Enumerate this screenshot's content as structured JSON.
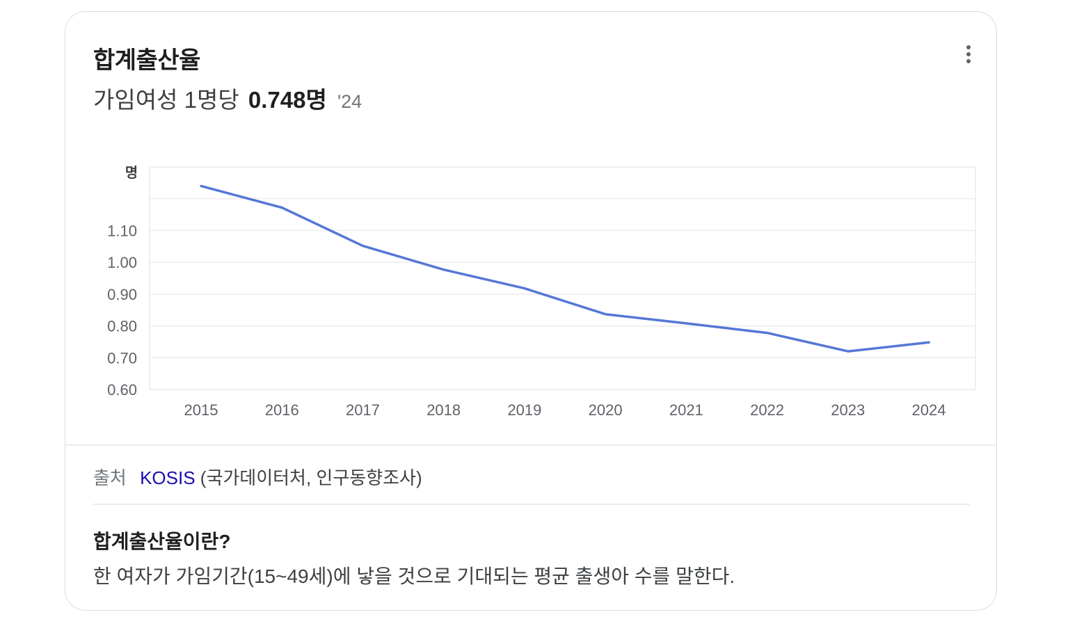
{
  "header": {
    "title": "합계출산율",
    "subtitle_prefix": "가임여성 1명당",
    "value": "0.748명",
    "year": "'24",
    "more_icon": "more-vertical-icon"
  },
  "chart_data": {
    "type": "line",
    "categories": [
      "2015",
      "2016",
      "2017",
      "2018",
      "2019",
      "2020",
      "2021",
      "2022",
      "2023",
      "2024"
    ],
    "series": [
      {
        "values": [
          1.24,
          1.172,
          1.052,
          0.977,
          0.918,
          0.837,
          0.808,
          0.778,
          0.72,
          0.748
        ],
        "color": "#5577d6"
      }
    ],
    "ylabel": "명",
    "yticks": [
      "0.60",
      "0.70",
      "0.80",
      "0.90",
      "1.00",
      "1.10"
    ],
    "ylim": [
      0.6,
      1.3
    ],
    "grid": true
  },
  "source": {
    "label": "출처",
    "link_text": "KOSIS",
    "detail": "(국가데이터처, 인구동향조사)"
  },
  "definition": {
    "title": "합계출산율이란?",
    "text": "한 여자가 가임기간(15~49세)에 낳을 것으로 기대되는 평균 출생아 수를 말한다."
  }
}
